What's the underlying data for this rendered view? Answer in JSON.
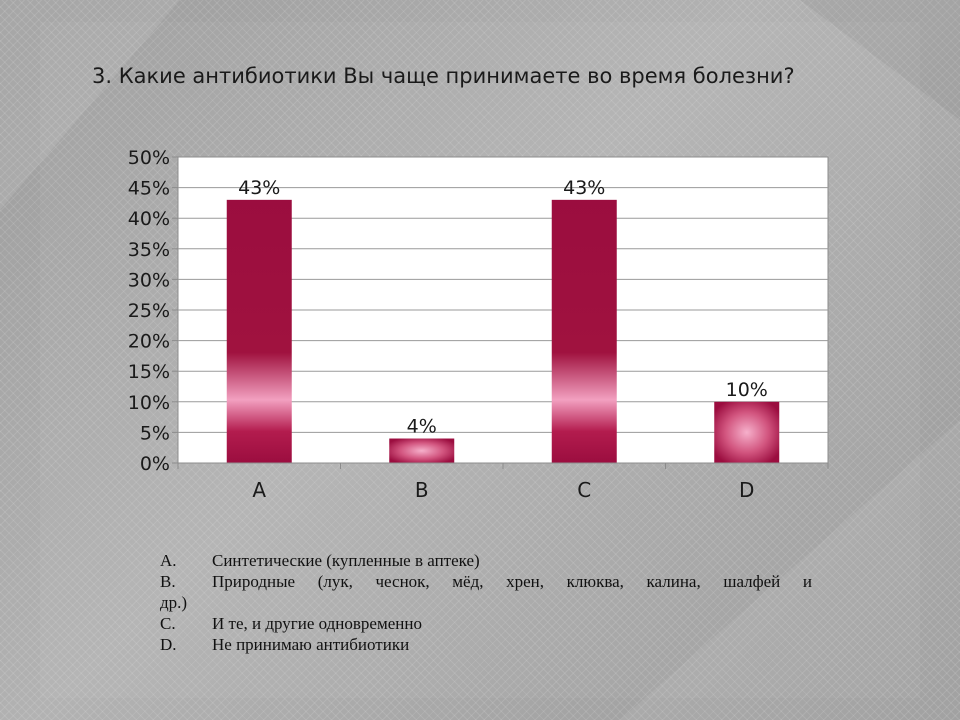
{
  "slide": {
    "title": "3. Какие антибиотики Вы чаще принимаете во время болезни?"
  },
  "colors": {
    "bar": "#9b0d3f",
    "bar_highlight": "#f4a3c2",
    "plot_background": "#ffffff",
    "gridline": "#9a9a9a"
  },
  "chart_data": {
    "type": "bar",
    "title": "",
    "xlabel": "",
    "ylabel": "",
    "categories": [
      "A",
      "B",
      "C",
      "D"
    ],
    "values": [
      43,
      4,
      43,
      10
    ],
    "data_labels": [
      "43%",
      "4%",
      "43%",
      "10%"
    ],
    "ylim": [
      0,
      50
    ],
    "yticks": [
      0,
      5,
      10,
      15,
      20,
      25,
      30,
      35,
      40,
      45,
      50
    ],
    "ytick_labels": [
      "0%",
      "5%",
      "10%",
      "15%",
      "20%",
      "25%",
      "30%",
      "35%",
      "40%",
      "45%",
      "50%"
    ],
    "grid": true,
    "legend": "none"
  },
  "legend": {
    "items": [
      {
        "letter": "A.",
        "text": "Синтетические (купленные в аптеке)"
      },
      {
        "letter": "B.",
        "text": "Природные (лук, чеснок, мёд, хрен, клюква, калина, шалфей и",
        "continuation": "др.)"
      },
      {
        "letter": "C.",
        "text": "И те, и другие одновременно"
      },
      {
        "letter": "D.",
        "text": "Не принимаю антибиотики"
      }
    ]
  }
}
